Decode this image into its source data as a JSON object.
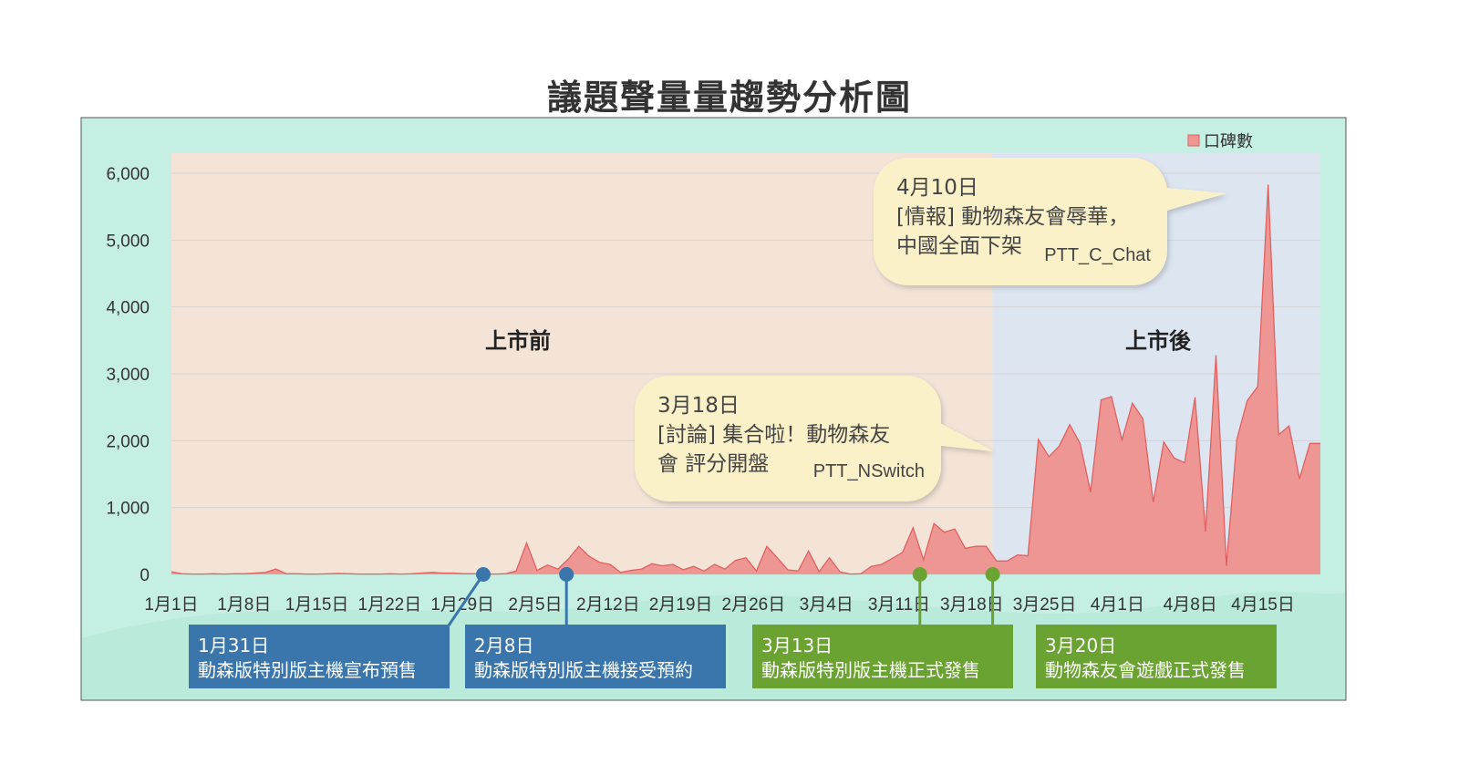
{
  "title": "議題聲量量趨勢分析圖",
  "colors": {
    "frame_bg": "#c6efe3",
    "pre_bg": "#f4e4d8",
    "post_bg": "#dde5f1",
    "area_fill": "#ee9694",
    "area_line": "#e0615f",
    "bubble": "#fbf1c9",
    "event_blue": "#3a76ac",
    "event_green": "#6aa331",
    "grid": "#d4d4d4"
  },
  "chart_data": {
    "type": "area",
    "xlabel": "",
    "ylabel": "",
    "ylim": [
      0,
      6000
    ],
    "grid": true,
    "legend_position": "top-right",
    "series": [
      {
        "name": "口碑數",
        "values": [
          40,
          10,
          5,
          5,
          10,
          5,
          10,
          10,
          20,
          30,
          80,
          10,
          10,
          5,
          5,
          10,
          15,
          10,
          5,
          5,
          5,
          10,
          5,
          10,
          20,
          30,
          20,
          20,
          10,
          10,
          5,
          5,
          10,
          50,
          470,
          60,
          140,
          80,
          230,
          420,
          270,
          180,
          150,
          30,
          60,
          80,
          160,
          130,
          150,
          70,
          120,
          50,
          150,
          80,
          210,
          250,
          50,
          420,
          250,
          70,
          50,
          350,
          40,
          250,
          40,
          5,
          10,
          120,
          150,
          240,
          330,
          700,
          220,
          760,
          630,
          680,
          390,
          420,
          420,
          200,
          200,
          290,
          280,
          2020,
          1760,
          1920,
          2240,
          1960,
          1230,
          2610,
          2660,
          2010,
          2560,
          2330,
          1080,
          1980,
          1740,
          1670,
          2650,
          640,
          3280,
          130,
          2020,
          2600,
          2810,
          5830,
          2090,
          2220,
          1430,
          1960,
          1960
        ]
      }
    ],
    "x_start": "1月1日",
    "x_ticks": [
      "1月1日",
      "1月8日",
      "1月15日",
      "1月22日",
      "1月29日",
      "2月5日",
      "2月12日",
      "2月19日",
      "2月26日",
      "3月4日",
      "3月11日",
      "3月18日",
      "3月25日",
      "4月1日",
      "4月8日",
      "4月15日"
    ],
    "y_ticks": [
      "0",
      "1,000",
      "2,000",
      "3,000",
      "4,000",
      "5,000",
      "6,000"
    ],
    "regions": [
      {
        "label": "上市前",
        "from": "1月1日",
        "to": "3月20日"
      },
      {
        "label": "上市後",
        "from": "3月20日",
        "to": "4月17日"
      }
    ],
    "callouts": [
      {
        "date": "4月10日",
        "lines": [
          "[情報] 動物森友會辱華，",
          "中國全面下架"
        ],
        "source": "PTT_C_Chat"
      },
      {
        "date": "3月18日",
        "lines": [
          "[討論] 集合啦！動物森友",
          "會 評分開盤"
        ],
        "source": "PTT_NSwitch"
      }
    ],
    "events": [
      {
        "date": "1月31日",
        "text": "動森版特別版主機宣布預售",
        "color": "blue"
      },
      {
        "date": "2月8日",
        "text": "動森版特別版主機接受預約",
        "color": "blue"
      },
      {
        "date": "3月13日",
        "text": "動森版特別版主機正式發售",
        "color": "green"
      },
      {
        "date": "3月20日",
        "text": "動物森友會遊戲正式發售",
        "color": "green"
      }
    ]
  }
}
